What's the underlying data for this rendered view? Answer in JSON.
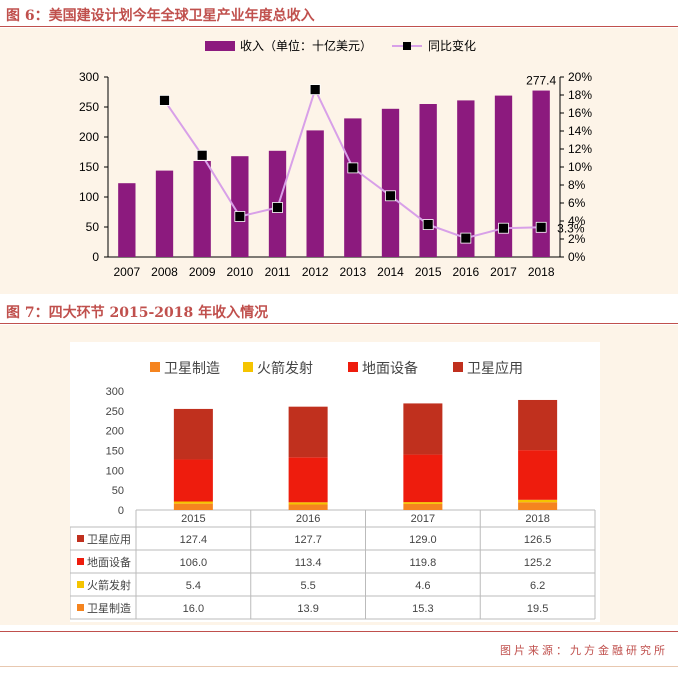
{
  "figure6": {
    "title": "图 6：美国建设计划今年全球卫星产业年度总收入",
    "colors": {
      "bar": "#8c1a7e",
      "line": "#d8a0e8",
      "marker": "#000000"
    },
    "chart_data": {
      "type": "bar",
      "title": "",
      "categories": [
        "2007",
        "2008",
        "2009",
        "2010",
        "2011",
        "2012",
        "2013",
        "2014",
        "2015",
        "2016",
        "2017",
        "2018"
      ],
      "series": [
        {
          "name": "收入（单位：十亿美元）",
          "axis": "left",
          "type": "bar",
          "values": [
            123,
            144,
            160,
            168,
            177,
            211,
            231,
            247,
            255,
            261,
            269,
            277.4
          ]
        },
        {
          "name": "同比变化",
          "axis": "right",
          "type": "line",
          "values": [
            null,
            17.4,
            11.3,
            4.5,
            5.5,
            18.6,
            9.9,
            6.8,
            3.6,
            2.1,
            3.2,
            3.3
          ]
        }
      ],
      "y_left": {
        "min": 0,
        "max": 300,
        "ticks": [
          "0",
          "50",
          "100",
          "150",
          "200",
          "250",
          "300"
        ]
      },
      "y_right": {
        "min": 0,
        "max": 20,
        "ticks": [
          "0%",
          "2%",
          "4%",
          "6%",
          "8%",
          "10%",
          "12%",
          "14%",
          "16%",
          "18%",
          "20%"
        ]
      },
      "annotations": {
        "last_bar": "277.4",
        "last_point": "3.3%"
      },
      "legend": {
        "position": "top",
        "labels": [
          "收入（单位：十亿美元）",
          "同比变化"
        ]
      }
    }
  },
  "figure7": {
    "title": "图 7：四大环节 2015-2018 年收入情况",
    "colors": {
      "卫星制造": "#f5841f",
      "火箭发射": "#f5c400",
      "地面设备": "#ee1c0d",
      "卫星应用": "#c0301e"
    },
    "chart_data": {
      "type": "bar",
      "stacked": true,
      "categories": [
        "2015",
        "2016",
        "2017",
        "2018"
      ],
      "series": [
        {
          "name": "卫星应用",
          "values": [
            127.4,
            127.7,
            129.0,
            126.5
          ],
          "labels": [
            "127.4",
            "127.7",
            "129.0",
            "126.5"
          ]
        },
        {
          "name": "地面设备",
          "values": [
            106.0,
            113.4,
            119.8,
            125.2
          ],
          "labels": [
            "106.0",
            "113.4",
            "119.8",
            "125.2"
          ]
        },
        {
          "name": "火箭发射",
          "values": [
            5.4,
            5.5,
            4.6,
            6.2
          ],
          "labels": [
            "5.4",
            "5.5",
            "4.6",
            "6.2"
          ]
        },
        {
          "name": "卫星制造",
          "values": [
            16.0,
            13.9,
            15.3,
            19.5
          ],
          "labels": [
            "16.0",
            "13.9",
            "15.3",
            "19.5"
          ]
        }
      ],
      "stack_order": [
        "卫星制造",
        "火箭发射",
        "地面设备",
        "卫星应用"
      ],
      "legend": {
        "position": "top",
        "labels": [
          "卫星制造",
          "火箭发射",
          "地面设备",
          "卫星应用"
        ]
      },
      "y": {
        "min": 0,
        "max": 300,
        "ticks": [
          "0",
          "50",
          "100",
          "150",
          "200",
          "250",
          "300"
        ]
      }
    }
  },
  "source": "图片来源：九方金融研究所"
}
